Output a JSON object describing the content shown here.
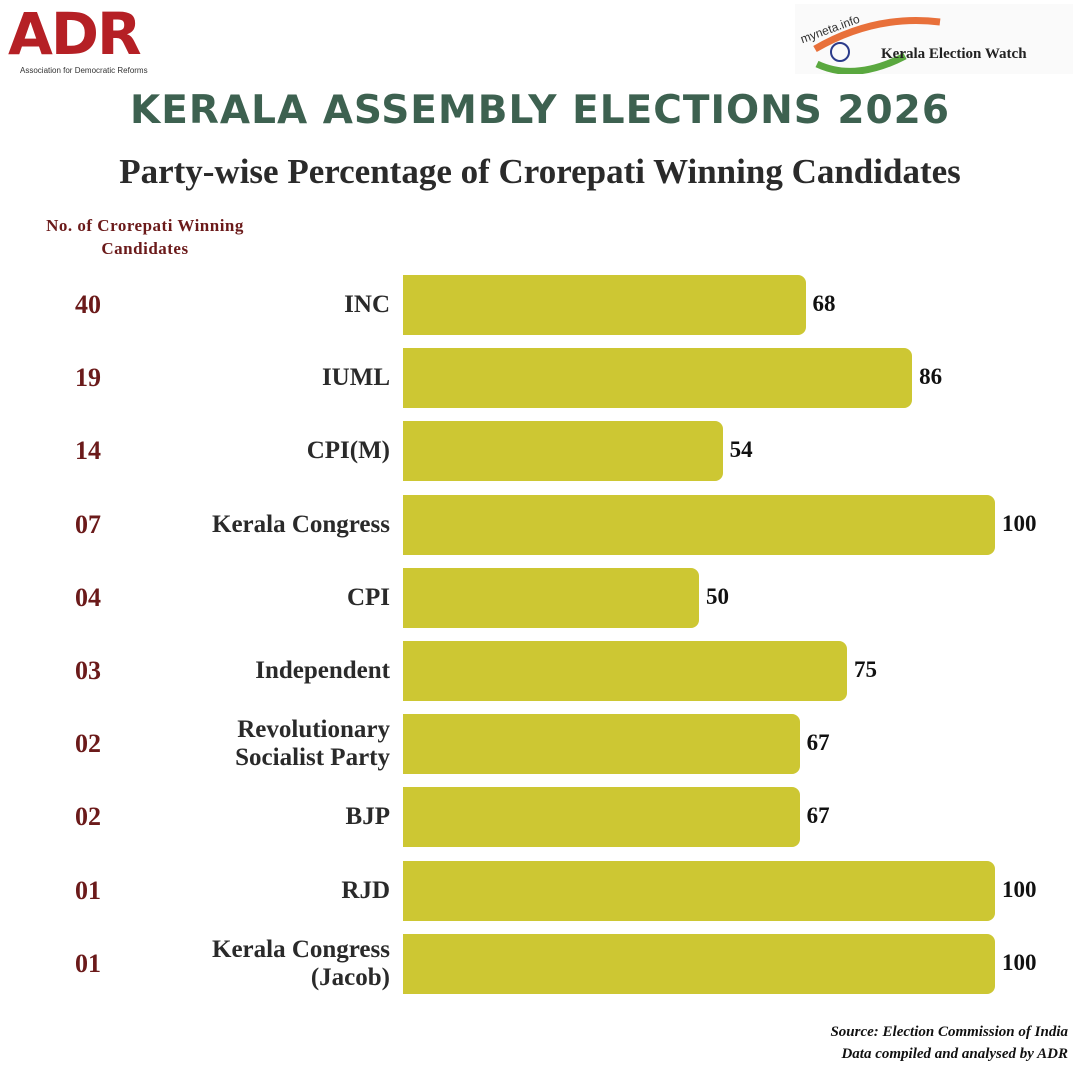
{
  "logos": {
    "adr": "ADR",
    "adr_full": "Association for Democratic Reforms",
    "myneta": "myneta.info",
    "watch": "Kerala Election Watch"
  },
  "chart_data": {
    "type": "bar",
    "orientation": "horizontal",
    "title": "KERALA ASSEMBLY ELECTIONS 2026",
    "subtitle": "Party-wise Percentage of Crorepati Winning Candidates",
    "count_header": "No. of Crorepati Winning Candidates",
    "categories": [
      "INC",
      "IUML",
      "CPI(M)",
      "Kerala Congress",
      "CPI",
      "Independent",
      "Revolutionary Socialist Party",
      "BJP",
      "RJD",
      "Kerala Congress (Jacob)"
    ],
    "counts": [
      40,
      19,
      14,
      {
        "value": 7,
        "label": "07"
      },
      {
        "value": 4,
        "label": "04"
      },
      {
        "value": 3,
        "label": "03"
      },
      {
        "value": 2,
        "label": "02"
      },
      {
        "value": 2,
        "label": "02"
      },
      {
        "value": 1,
        "label": "01"
      },
      {
        "value": 1,
        "label": "01"
      }
    ],
    "values": [
      68,
      86,
      54,
      100,
      50,
      75,
      67,
      67,
      100,
      100
    ],
    "color": "#cdc733",
    "xlim": [
      0,
      100
    ],
    "source": "Source: Election Commission of India",
    "credit": "Data compiled and analysed by ADR"
  }
}
